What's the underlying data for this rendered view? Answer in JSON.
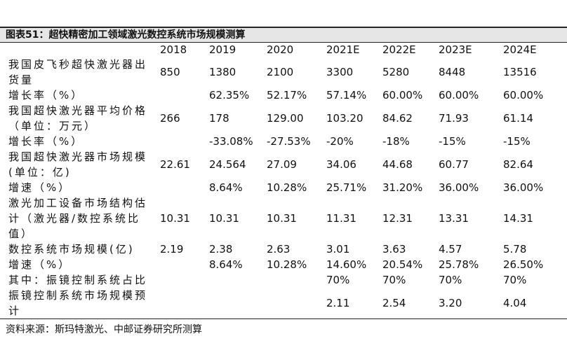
{
  "header": {
    "title": "图表51：超快精密加工领域激光数控系统市场规模测算"
  },
  "table": {
    "columns": [
      "2018",
      "2019",
      "2020",
      "2021E",
      "2022E",
      "2023E",
      "2024E"
    ],
    "rows": [
      {
        "label": "我国皮飞秒超快激光器出货量",
        "cells": [
          "850",
          "1380",
          "2100",
          "3300",
          "5280",
          "8448",
          "13516"
        ]
      },
      {
        "label": "增长率（%）",
        "cells": [
          null,
          "62.35%",
          "52.17%",
          "57.14%",
          "60.00%",
          "60.00%",
          "60.00%"
        ]
      },
      {
        "label": "我国超快激光器平均价格（单位：万元）",
        "cells": [
          "266",
          "178",
          "129.00",
          "103.20",
          "84.62",
          "71.93",
          "61.14"
        ]
      },
      {
        "label": "增长率（%）",
        "cells": [
          null,
          "-33.08%",
          "-27.53%",
          "-20%",
          "-18%",
          "-15%",
          "-15%"
        ]
      },
      {
        "label": "我国超快激光器市场规模(单位：亿)",
        "cells": [
          "22.61",
          "24.564",
          "27.09",
          "34.06",
          "44.68",
          "60.77",
          "82.64"
        ]
      },
      {
        "label": "增速（%）",
        "cells": [
          null,
          "8.64%",
          "10.28%",
          "25.71%",
          "31.20%",
          "36.00%",
          "36.00%"
        ]
      },
      {
        "label": "激光加工设备市场结构估计（激光器/数控系统比值）",
        "cells": [
          "10.31",
          "10.31",
          "10.31",
          "11.31",
          "12.31",
          "13.31",
          "14.31"
        ]
      },
      {
        "label": "数控系统市场规模(亿)",
        "cells": [
          "2.19",
          "2.38",
          "2.63",
          "3.01",
          "3.63",
          "4.57",
          "5.78"
        ]
      },
      {
        "label": "增速（%）",
        "cells": [
          null,
          "8.64%",
          "10.28%",
          "14.60%",
          "20.54%",
          "25.78%",
          "26.50%"
        ]
      },
      {
        "label": "其中：振镜控制系统占比",
        "cells": [
          null,
          null,
          null,
          "70%",
          "70%",
          "70%",
          "70%"
        ]
      },
      {
        "label": "振镜控制系统市场规模预计",
        "cells": [
          null,
          null,
          null,
          "2.11",
          "2.54",
          "3.20",
          "4.04"
        ]
      }
    ]
  },
  "footer": {
    "source": "资料来源：斯玛特激光、中邮证券研究所测算"
  }
}
